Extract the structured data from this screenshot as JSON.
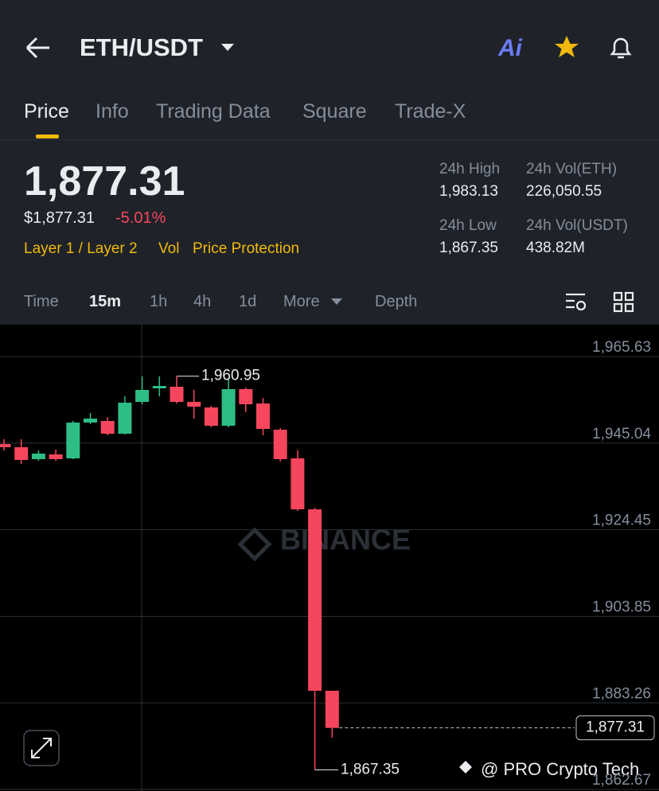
{
  "header": {
    "pair": "ETH/USDT",
    "ai": "Ai"
  },
  "tabs": [
    "Price",
    "Info",
    "Trading Data",
    "Square",
    "Trade-X"
  ],
  "price": {
    "last": "1,877.31",
    "fiat": "$1,877.31",
    "change": "-5.01%",
    "tags": [
      "Layer 1 / Layer 2",
      "Vol",
      "Price Protection"
    ]
  },
  "stats": [
    {
      "label": "24h High",
      "value": "1,983.13"
    },
    {
      "label": "24h Vol(ETH)",
      "value": "226,050.55"
    },
    {
      "label": "24h Low",
      "value": "1,867.35"
    },
    {
      "label": "24h Vol(USDT)",
      "value": "438.82M"
    }
  ],
  "intervals": [
    "Time",
    "15m",
    "1h",
    "4h",
    "1d",
    "More",
    "Depth"
  ],
  "chart_data": {
    "type": "candlestick",
    "categories": [
      null,
      null,
      null,
      null,
      null,
      null,
      null,
      null,
      null,
      null,
      null,
      null,
      null,
      null,
      null,
      null,
      null,
      null,
      null,
      null
    ],
    "open": [
      1944.81,
      1944.06,
      1941.22,
      1942.35,
      1941.41,
      1949.92,
      1950.3,
      1947.27,
      1954.84,
      1958.06,
      1958.44,
      1954.84,
      1953.52,
      1949.17,
      1957.87,
      1954.46,
      1948.22,
      1941.41,
      1929.29,
      1886.14
    ],
    "high": [
      1945.95,
      1945.95,
      1943.3,
      1943.49,
      1950.3,
      1952.19,
      1951.25,
      1956.17,
      1960.9,
      1960.9,
      1960.95,
      1957.68,
      1953.9,
      1960.52,
      1958.25,
      1955.79,
      1948.6,
      1943.3,
      1929.67,
      1886.14
    ],
    "low": [
      1943.3,
      1940.08,
      1940.84,
      1940.84,
      1941.22,
      1949.54,
      1946.89,
      1947.08,
      1954.27,
      1956.17,
      1954.46,
      1950.87,
      1948.79,
      1948.79,
      1952.38,
      1946.89,
      1940.65,
      1928.92,
      1867.35,
      1874.98
    ],
    "close": [
      1944.06,
      1941.03,
      1942.54,
      1941.22,
      1949.92,
      1950.87,
      1947.27,
      1954.65,
      1957.68,
      1958.63,
      1954.84,
      1953.71,
      1949.17,
      1957.87,
      1954.27,
      1948.41,
      1941.22,
      1929.29,
      1886.14,
      1877.31
    ],
    "up_color": "#2ebd85",
    "down_color": "#f6465d",
    "ylim": [
      1862.3,
      1973.2
    ],
    "yticks": [
      {
        "value": 1965.63,
        "label": "1,965.63"
      },
      {
        "value": 1945.04,
        "label": "1,945.04"
      },
      {
        "value": 1924.45,
        "label": "1,924.45"
      },
      {
        "value": 1903.85,
        "label": "1,903.85"
      },
      {
        "value": 1883.26,
        "label": "1,883.26"
      },
      {
        "value": 1862.67,
        "label": "1,862.67"
      }
    ],
    "grid": true,
    "high_label": {
      "value": 1960.95,
      "label": "1,960.95"
    },
    "low_label": {
      "value": 1867.35,
      "label": "1,867.35"
    },
    "last_price": {
      "value": 1877.31,
      "label": "1,877.31"
    }
  },
  "watermarks": {
    "brand": "BINANCE",
    "credit": "@ PRO Crypto Tech"
  }
}
